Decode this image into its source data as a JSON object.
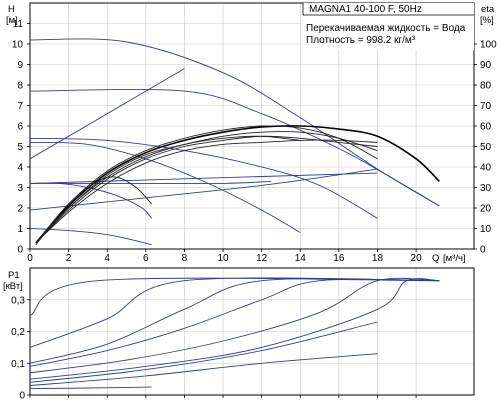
{
  "chart_data": [
    {
      "type": "line",
      "title": "MAGNA1 40-100 F, 50Hz",
      "annotations": [
        "Перекачиваемая жидкость = Вода",
        "Плотность = 998.2 кг/м³"
      ],
      "ylabel": "H",
      "ylabel_unit": "[м]",
      "y2label": "eta",
      "y2label_unit": "[%]",
      "xlabel": "Q",
      "xlabel_unit": "[м³/ч]",
      "xlim": [
        0,
        23
      ],
      "ylim": [
        0,
        12
      ],
      "y2lim": [
        0,
        120
      ],
      "x_ticks": [
        0,
        2,
        4,
        6,
        8,
        10,
        12,
        14,
        16,
        18,
        20
      ],
      "y_ticks": [
        0,
        1,
        2,
        3,
        4,
        5,
        6,
        7,
        8,
        9,
        10,
        11
      ],
      "y2_ticks": [
        0,
        10,
        20,
        30,
        40,
        50,
        60,
        70,
        80,
        90,
        100
      ],
      "grid": true,
      "head_curves": [
        {
          "x": [
            0,
            5,
            10,
            14,
            18,
            21.2
          ],
          "y": [
            10.2,
            10.1,
            8.6,
            6.4,
            3.9,
            2.1
          ]
        },
        {
          "x": [
            0,
            8,
            12,
            16,
            18.5,
            21.2
          ],
          "y": [
            7.7,
            7.7,
            6.6,
            4.9,
            3.6,
            2.1
          ]
        },
        {
          "x": [
            0,
            4,
            8,
            12,
            15,
            18
          ],
          "y": [
            5.4,
            5.3,
            4.8,
            4.0,
            3.1,
            1.5
          ]
        },
        {
          "x": [
            0,
            3,
            6,
            9,
            12,
            14
          ],
          "y": [
            5.2,
            5.1,
            4.4,
            3.3,
            1.9,
            0.8
          ]
        },
        {
          "x": [
            0,
            1.5,
            3,
            4.5,
            5.8,
            6.3
          ],
          "y": [
            3.2,
            3.2,
            3.0,
            2.6,
            2.0,
            1.5
          ]
        },
        {
          "x": [
            0,
            2,
            4,
            5.5,
            6.3
          ],
          "y": [
            1.0,
            0.9,
            0.7,
            0.4,
            0.2
          ]
        },
        {
          "x": [
            0,
            6,
            12,
            18
          ],
          "y": [
            1.9,
            2.5,
            3.1,
            3.9
          ]
        },
        {
          "x": [
            0,
            6,
            10,
            12.5
          ],
          "y": [
            3.2,
            3.2,
            3.2,
            3.3
          ]
        }
      ],
      "efficiency_curves": [
        {
          "x": [
            0.3,
            2,
            4,
            6,
            8,
            10,
            12,
            14,
            16,
            18,
            20,
            21.2
          ],
          "y": [
            3,
            21,
            37,
            47,
            53,
            57,
            59.5,
            60,
            58.5,
            55,
            44,
            33
          ],
          "emphasis": true
        },
        {
          "x": [
            0.3,
            2,
            4,
            6,
            8,
            10,
            12,
            14,
            16,
            18
          ],
          "y": [
            3,
            22,
            38,
            48,
            54,
            58,
            60,
            59,
            54,
            44
          ]
        },
        {
          "x": [
            0.3,
            2,
            4,
            6,
            8,
            10,
            12,
            14,
            16,
            18
          ],
          "y": [
            3,
            20,
            36,
            46,
            51,
            55,
            57,
            57,
            54,
            48
          ]
        },
        {
          "x": [
            0.3,
            2,
            4,
            6,
            8,
            10,
            12,
            14,
            16,
            18
          ],
          "y": [
            3,
            19,
            34,
            44,
            50,
            53,
            55,
            54,
            52,
            50
          ]
        },
        {
          "x": [
            0.3,
            2,
            4,
            6,
            8,
            10,
            12,
            14,
            16,
            18
          ],
          "y": [
            3,
            18,
            32,
            42,
            48,
            51,
            52,
            53,
            53,
            52
          ]
        },
        {
          "x": [
            0.3,
            2,
            4,
            6,
            8,
            10,
            12,
            14
          ],
          "y": [
            3,
            20,
            35,
            45,
            51,
            54,
            55,
            53
          ]
        },
        {
          "x": [
            0.3,
            2,
            3.5,
            4.5,
            5.5,
            6.3
          ],
          "y": [
            2,
            22,
            33,
            35,
            30,
            22
          ]
        }
      ],
      "reference_lines": [
        {
          "x": [
            0,
            8
          ],
          "y": [
            4.4,
            8.8
          ]
        },
        {
          "x": [
            0,
            18
          ],
          "y": [
            3.2,
            3.7
          ]
        }
      ]
    },
    {
      "type": "line",
      "ylabel": "P1",
      "ylabel_unit": "[кВт]",
      "xlim": [
        0,
        23
      ],
      "ylim": [
        0,
        0.4
      ],
      "y_ticks": [
        0,
        0.1,
        0.2,
        0.3
      ],
      "y_tick_labels": [
        "0",
        "0,1",
        "0,2",
        "0,3"
      ],
      "grid": true,
      "series": [
        {
          "x": [
            0,
            3.5,
            21.2
          ],
          "y": [
            0.25,
            0.36,
            0.36
          ]
        },
        {
          "x": [
            0,
            4,
            8,
            21.2
          ],
          "y": [
            0.15,
            0.24,
            0.36,
            0.36
          ]
        },
        {
          "x": [
            0,
            4,
            8,
            12,
            21.2
          ],
          "y": [
            0.1,
            0.16,
            0.27,
            0.36,
            0.36
          ]
        },
        {
          "x": [
            0,
            4,
            8,
            12,
            15,
            21.2
          ],
          "y": [
            0.09,
            0.14,
            0.21,
            0.3,
            0.36,
            0.36
          ]
        },
        {
          "x": [
            0,
            5,
            10,
            15,
            18,
            21.2
          ],
          "y": [
            0.07,
            0.11,
            0.17,
            0.26,
            0.36,
            0.36
          ]
        },
        {
          "x": [
            0,
            6,
            12,
            18,
            19.5,
            21.2
          ],
          "y": [
            0.05,
            0.09,
            0.15,
            0.27,
            0.36,
            0.36
          ]
        },
        {
          "x": [
            0,
            6,
            12,
            18
          ],
          "y": [
            0.04,
            0.08,
            0.14,
            0.23
          ]
        },
        {
          "x": [
            0,
            6,
            12,
            18
          ],
          "y": [
            0.03,
            0.06,
            0.1,
            0.13
          ]
        },
        {
          "x": [
            0,
            3,
            6.3
          ],
          "y": [
            0.02,
            0.022,
            0.025
          ]
        }
      ]
    }
  ]
}
